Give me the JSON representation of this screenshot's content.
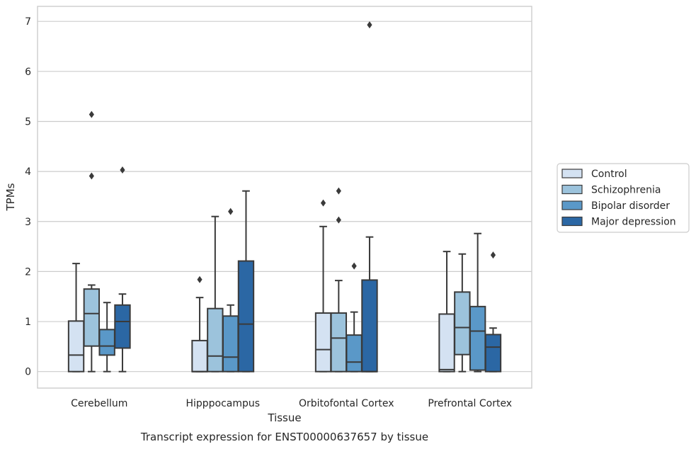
{
  "chart_data": {
    "type": "box",
    "caption": "Transcript expression for ENST00000637657 by tissue",
    "xlabel": "Tissue",
    "ylabel": "TPMs",
    "ylim": [
      -0.33,
      7.3
    ],
    "yticks": [
      0,
      1,
      2,
      3,
      4,
      5,
      6,
      7
    ],
    "grid": true,
    "legend_position": "right",
    "categories": [
      "Cerebellum",
      "Hipppocampus",
      "Orbitofontal Cortex",
      "Prefrontal Cortex"
    ],
    "series": [
      {
        "name": "Control",
        "color": "#d4e2f2",
        "boxes": [
          {
            "q1": 0.0,
            "median": 0.33,
            "q3": 1.01,
            "whisker_low": 0.0,
            "whisker_high": 2.16,
            "outliers": []
          },
          {
            "q1": 0.0,
            "median": 0.0,
            "q3": 0.62,
            "whisker_low": 0.0,
            "whisker_high": 1.48,
            "outliers": [
              1.84
            ]
          },
          {
            "q1": 0.0,
            "median": 0.44,
            "q3": 1.17,
            "whisker_low": 0.0,
            "whisker_high": 2.9,
            "outliers": [
              3.37
            ]
          },
          {
            "q1": 0.0,
            "median": 0.04,
            "q3": 1.15,
            "whisker_low": 0.0,
            "whisker_high": 2.4,
            "outliers": []
          }
        ]
      },
      {
        "name": "Schizophrenia",
        "color": "#9cc3dc",
        "boxes": [
          {
            "q1": 0.51,
            "median": 1.16,
            "q3": 1.65,
            "whisker_low": 0.0,
            "whisker_high": 1.73,
            "outliers": [
              3.91,
              5.14
            ]
          },
          {
            "q1": 0.0,
            "median": 0.31,
            "q3": 1.26,
            "whisker_low": 0.0,
            "whisker_high": 3.1,
            "outliers": []
          },
          {
            "q1": 0.0,
            "median": 0.67,
            "q3": 1.17,
            "whisker_low": 0.0,
            "whisker_high": 1.82,
            "outliers": [
              3.03,
              3.61
            ]
          },
          {
            "q1": 0.34,
            "median": 0.88,
            "q3": 1.59,
            "whisker_low": 0.0,
            "whisker_high": 2.35,
            "outliers": []
          }
        ]
      },
      {
        "name": "Bipolar disorder",
        "color": "#5a98c8",
        "boxes": [
          {
            "q1": 0.33,
            "median": 0.51,
            "q3": 0.84,
            "whisker_low": 0.0,
            "whisker_high": 1.38,
            "outliers": []
          },
          {
            "q1": 0.0,
            "median": 0.29,
            "q3": 1.11,
            "whisker_low": 0.0,
            "whisker_high": 1.33,
            "outliers": [
              3.2
            ]
          },
          {
            "q1": 0.0,
            "median": 0.19,
            "q3": 0.73,
            "whisker_low": 0.0,
            "whisker_high": 1.19,
            "outliers": [
              2.11
            ]
          },
          {
            "q1": 0.03,
            "median": 0.81,
            "q3": 1.3,
            "whisker_low": 0.0,
            "whisker_high": 2.76,
            "outliers": []
          }
        ]
      },
      {
        "name": "Major depression",
        "color": "#2b67a4",
        "boxes": [
          {
            "q1": 0.47,
            "median": 1.0,
            "q3": 1.33,
            "whisker_low": 0.0,
            "whisker_high": 1.55,
            "outliers": [
              4.03
            ]
          },
          {
            "q1": 0.0,
            "median": 0.95,
            "q3": 2.21,
            "whisker_low": 0.0,
            "whisker_high": 3.61,
            "outliers": []
          },
          {
            "q1": 0.0,
            "median": 0.0,
            "q3": 1.83,
            "whisker_low": 0.0,
            "whisker_high": 2.69,
            "outliers": [
              6.93
            ]
          },
          {
            "q1": 0.0,
            "median": 0.49,
            "q3": 0.74,
            "whisker_low": 0.0,
            "whisker_high": 0.87,
            "outliers": [
              2.33
            ]
          }
        ]
      }
    ]
  }
}
